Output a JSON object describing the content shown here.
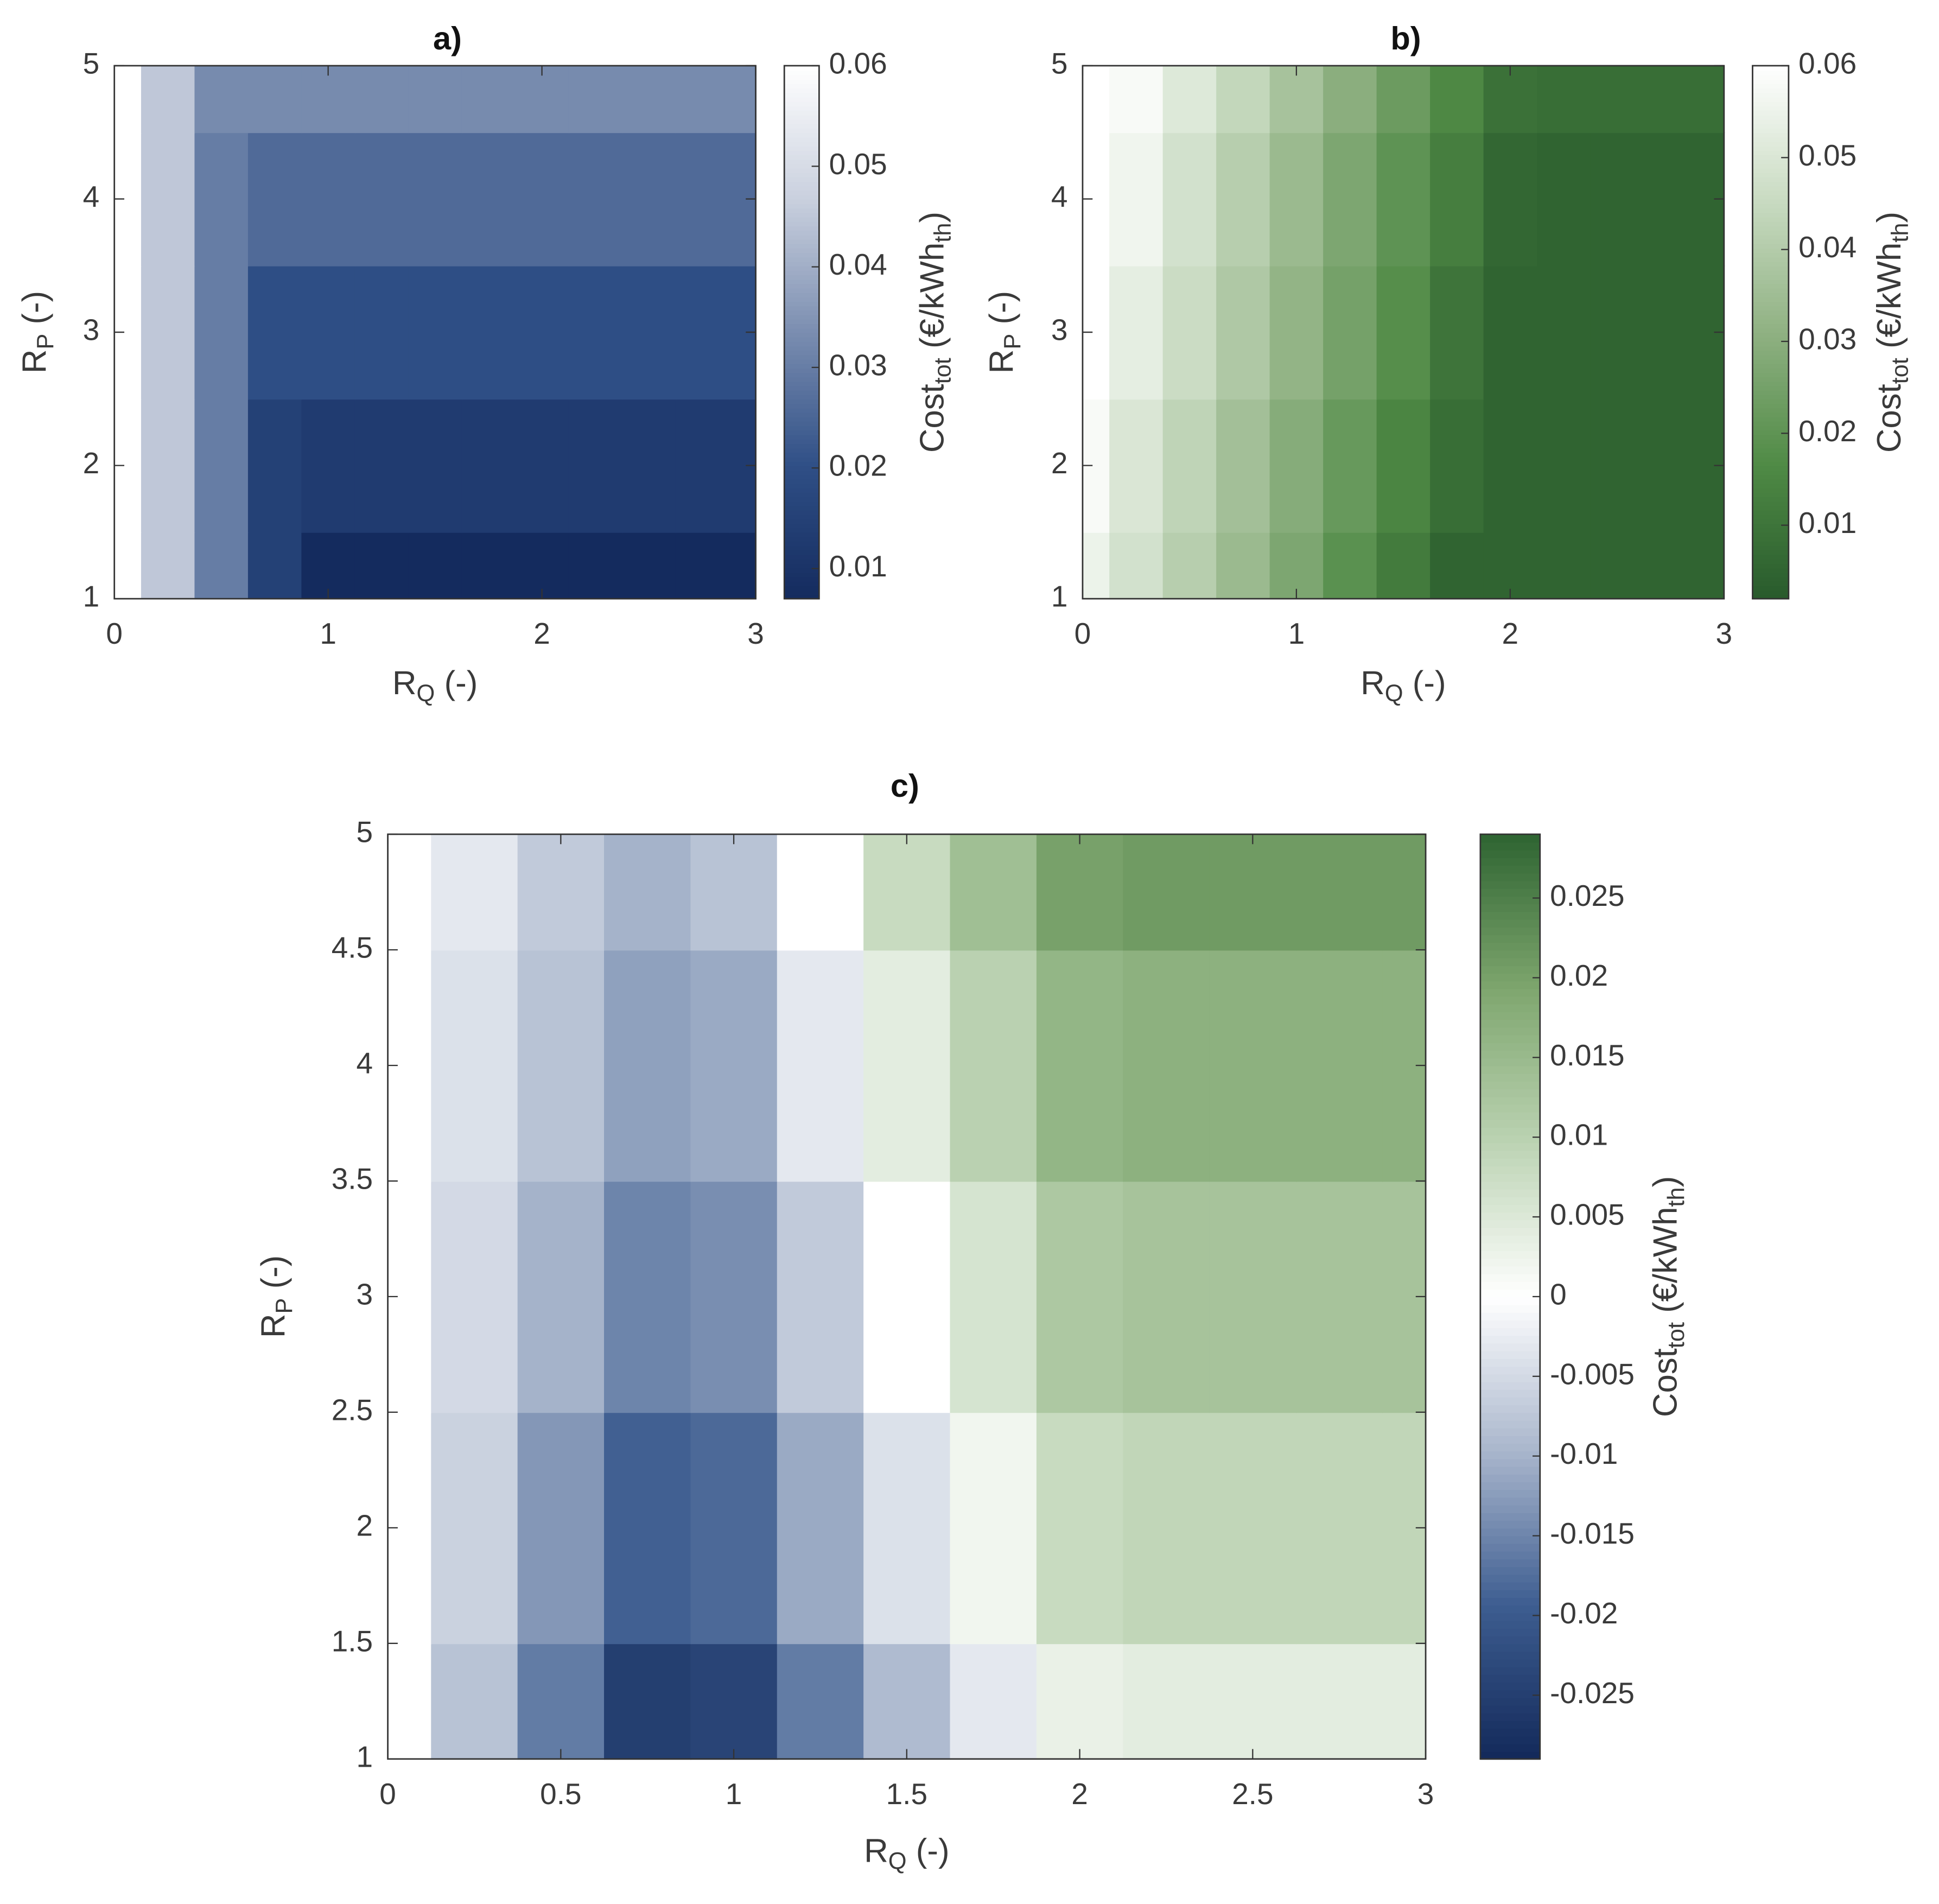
{
  "chart_data": [
    {
      "type": "contour",
      "title": "a)",
      "xlabel": [
        "R",
        "Q",
        " (-)"
      ],
      "ylabel": [
        "R",
        "P",
        " (-)"
      ],
      "x": [
        0,
        0.25,
        0.5,
        0.75,
        1,
        1.25,
        1.5,
        1.75,
        2,
        2.25,
        2.5,
        2.75,
        3
      ],
      "y": [
        1,
        2,
        3,
        4,
        5
      ],
      "z": [
        [
          0.06,
          0.045,
          0.03,
          0.015,
          0.007,
          0.007,
          0.007,
          0.007,
          0.007,
          0.007,
          0.007,
          0.007,
          0.007
        ],
        [
          0.06,
          0.045,
          0.03,
          0.015,
          0.013,
          0.013,
          0.013,
          0.013,
          0.013,
          0.013,
          0.013,
          0.013,
          0.013
        ],
        [
          0.06,
          0.045,
          0.03,
          0.02,
          0.02,
          0.02,
          0.02,
          0.02,
          0.02,
          0.02,
          0.02,
          0.02,
          0.02
        ],
        [
          0.06,
          0.045,
          0.03,
          0.026,
          0.026,
          0.026,
          0.026,
          0.026,
          0.026,
          0.026,
          0.026,
          0.026,
          0.026
        ],
        [
          0.06,
          0.045,
          0.033,
          0.033,
          0.033,
          0.033,
          0.033,
          0.033,
          0.033,
          0.033,
          0.033,
          0.033,
          0.033
        ]
      ],
      "xlim": [
        0,
        3
      ],
      "ylim": [
        1,
        5
      ],
      "xticks": [
        0,
        1,
        2,
        3
      ],
      "yticks": [
        1,
        2,
        3,
        4,
        5
      ],
      "colorbar": {
        "label": [
          "Cost",
          "tot",
          " (€/kWh",
          "th",
          ")"
        ],
        "clim": [
          0.007,
          0.06
        ],
        "ticks": [
          0.01,
          0.02,
          0.03,
          0.04,
          0.05,
          0.06
        ]
      },
      "colormap": [
        "#142b5e",
        "#2f4f86",
        "#7a8db0",
        "#c9d0de",
        "#ffffff"
      ]
    },
    {
      "type": "contour",
      "title": "b)",
      "xlabel": [
        "R",
        "Q",
        " (-)"
      ],
      "ylabel": [
        "R",
        "P",
        " (-)"
      ],
      "x": [
        0,
        0.25,
        0.5,
        0.75,
        1,
        1.25,
        1.5,
        1.75,
        2,
        2.25,
        2.5,
        2.75,
        3
      ],
      "y": [
        1,
        2,
        3,
        4,
        5
      ],
      "z": [
        [
          0.055,
          0.048,
          0.041,
          0.034,
          0.027,
          0.019,
          0.012,
          0.005,
          0.005,
          0.005,
          0.005,
          0.005,
          0.005
        ],
        [
          0.058,
          0.05,
          0.043,
          0.036,
          0.029,
          0.022,
          0.015,
          0.008,
          0.005,
          0.005,
          0.005,
          0.005,
          0.005
        ],
        [
          0.06,
          0.053,
          0.046,
          0.039,
          0.032,
          0.025,
          0.018,
          0.01,
          0.005,
          0.005,
          0.005,
          0.005,
          0.005
        ],
        [
          0.06,
          0.056,
          0.048,
          0.041,
          0.034,
          0.027,
          0.02,
          0.013,
          0.006,
          0.005,
          0.005,
          0.005,
          0.005
        ],
        [
          0.06,
          0.058,
          0.051,
          0.044,
          0.037,
          0.03,
          0.023,
          0.016,
          0.009,
          0.008,
          0.008,
          0.008,
          0.008
        ]
      ],
      "xlim": [
        0,
        3
      ],
      "ylim": [
        1,
        5
      ],
      "xticks": [
        0,
        1,
        2,
        3
      ],
      "yticks": [
        1,
        2,
        3,
        4,
        5
      ],
      "colorbar": {
        "label": [
          "Cost",
          "tot",
          " (€/kWh",
          "th",
          ")"
        ],
        "clim": [
          0.002,
          0.06
        ],
        "ticks": [
          0.01,
          0.02,
          0.03,
          0.04,
          0.05,
          0.06
        ]
      },
      "colormap": [
        "#285a2c",
        "#4f8a45",
        "#8fb182",
        "#c9dbc2",
        "#ffffff"
      ]
    },
    {
      "type": "heatmap",
      "title": "c)",
      "xlabel": [
        "R",
        "Q",
        " (-)"
      ],
      "ylabel": [
        "R",
        "P",
        " (-)"
      ],
      "x": [
        0,
        0.25,
        0.5,
        0.75,
        1,
        1.25,
        1.5,
        1.75,
        2,
        2.25,
        2.5,
        2.75,
        3
      ],
      "y": [
        1,
        2,
        3,
        4,
        5
      ],
      "z": [
        [
          0,
          -0.008,
          -0.016,
          -0.025,
          -0.024,
          -0.016,
          -0.009,
          -0.003,
          0.003,
          0.004,
          0.004,
          0.004,
          0.004
        ],
        [
          0,
          -0.006,
          -0.013,
          -0.019,
          -0.018,
          -0.011,
          -0.004,
          0.002,
          0.008,
          0.009,
          0.009,
          0.009,
          0.009
        ],
        [
          0,
          -0.005,
          -0.01,
          -0.015,
          -0.014,
          -0.007,
          0,
          0.006,
          0.012,
          0.013,
          0.013,
          0.013,
          0.013
        ],
        [
          0,
          -0.004,
          -0.008,
          -0.012,
          -0.011,
          -0.003,
          0.004,
          0.01,
          0.016,
          0.017,
          0.017,
          0.017,
          0.017
        ],
        [
          0,
          -0.003,
          -0.007,
          -0.01,
          -0.008,
          0,
          0.008,
          0.014,
          0.02,
          0.021,
          0.021,
          0.021,
          0.021
        ]
      ],
      "xlim": [
        0,
        3
      ],
      "ylim": [
        1,
        5
      ],
      "xticks": [
        0,
        0.5,
        1,
        1.5,
        2,
        2.5,
        3
      ],
      "yticks": [
        1,
        1.5,
        2,
        2.5,
        3,
        3.5,
        4,
        4.5,
        5
      ],
      "colorbar": {
        "label": [
          "Cost",
          "tot",
          " (€/kWh",
          "th",
          ")"
        ],
        "clim": [
          -0.029,
          0.029
        ],
        "ticks": [
          -0.025,
          -0.02,
          -0.015,
          -0.01,
          -0.005,
          0,
          0.005,
          0.01,
          0.015,
          0.02,
          0.025
        ]
      },
      "colormap": [
        "#13295a",
        "#3d5d90",
        "#a9b6cc",
        "#ffffff",
        "#bcd3b3",
        "#7ea66e",
        "#2e6431"
      ]
    }
  ]
}
